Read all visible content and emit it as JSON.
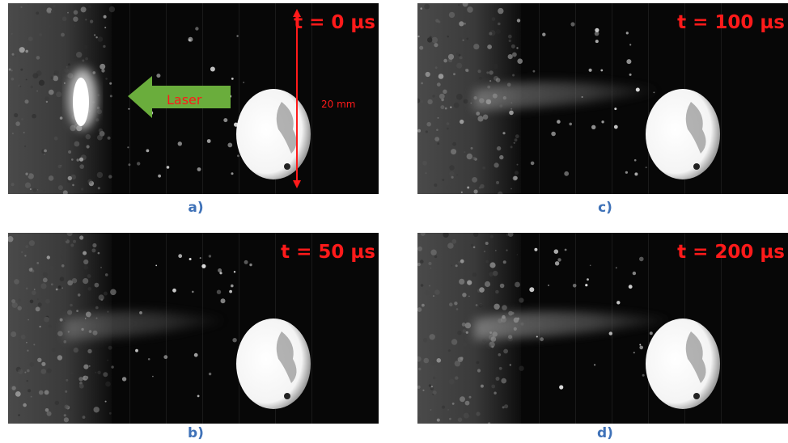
{
  "figure": {
    "panels": [
      {
        "id": "a",
        "time_label": "t = 0 µs",
        "caption": "a)",
        "plume_strength": 0
      },
      {
        "id": "b",
        "time_label": "t = 50 µs",
        "caption": "b)",
        "plume_strength": 0.6
      },
      {
        "id": "c",
        "time_label": "t = 100 µs",
        "caption": "c)",
        "plume_strength": 0.8
      },
      {
        "id": "d",
        "time_label": "t = 200 µs",
        "caption": "d)",
        "plume_strength": 0.9
      }
    ],
    "annotations": {
      "laser_arrow_label": "Laser",
      "scale_bar_label": "20 mm",
      "arrow_color": "#6aad3c",
      "annotation_color": "#ff1a1a",
      "caption_color": "#3f72b8"
    }
  }
}
